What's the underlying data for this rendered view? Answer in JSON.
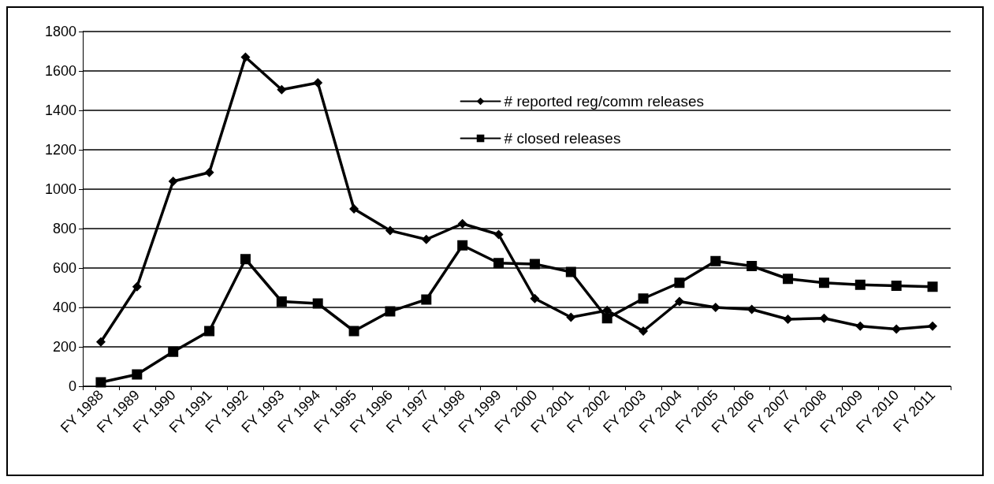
{
  "chart_data": {
    "type": "line",
    "categories": [
      "FY 1988",
      "FY 1989",
      "FY 1990",
      "FY 1991",
      "FY 1992",
      "FY 1993",
      "FY 1994",
      "FY 1995",
      "FY 1996",
      "FY 1997",
      "FY 1998",
      "FY 1999",
      "FY 2000",
      "FY 2001",
      "FY 2002",
      "FY 2003",
      "FY 2004",
      "FY 2005",
      "FY 2006",
      "FY 2007",
      "FY 2008",
      "FY 2009",
      "FY 2010",
      "FY 2011"
    ],
    "series": [
      {
        "name": "# reported reg/comm releases",
        "color": "#000000",
        "marker": "diamond",
        "values": [
          225,
          505,
          1040,
          1085,
          1670,
          1505,
          1540,
          900,
          790,
          745,
          825,
          770,
          445,
          350,
          385,
          280,
          430,
          400,
          390,
          340,
          345,
          305,
          290,
          305
        ]
      },
      {
        "name": "# closed releases",
        "color": "#000000",
        "marker": "square",
        "values": [
          20,
          60,
          175,
          280,
          645,
          430,
          420,
          280,
          380,
          440,
          715,
          625,
          620,
          580,
          345,
          445,
          525,
          635,
          610,
          545,
          525,
          515,
          510,
          505
        ]
      }
    ],
    "ylim": [
      0,
      1800
    ],
    "yticks": [
      0,
      200,
      400,
      600,
      800,
      1000,
      1200,
      1400,
      1600,
      1800
    ],
    "grid": "y",
    "legend": "top",
    "line_style": "solid"
  }
}
